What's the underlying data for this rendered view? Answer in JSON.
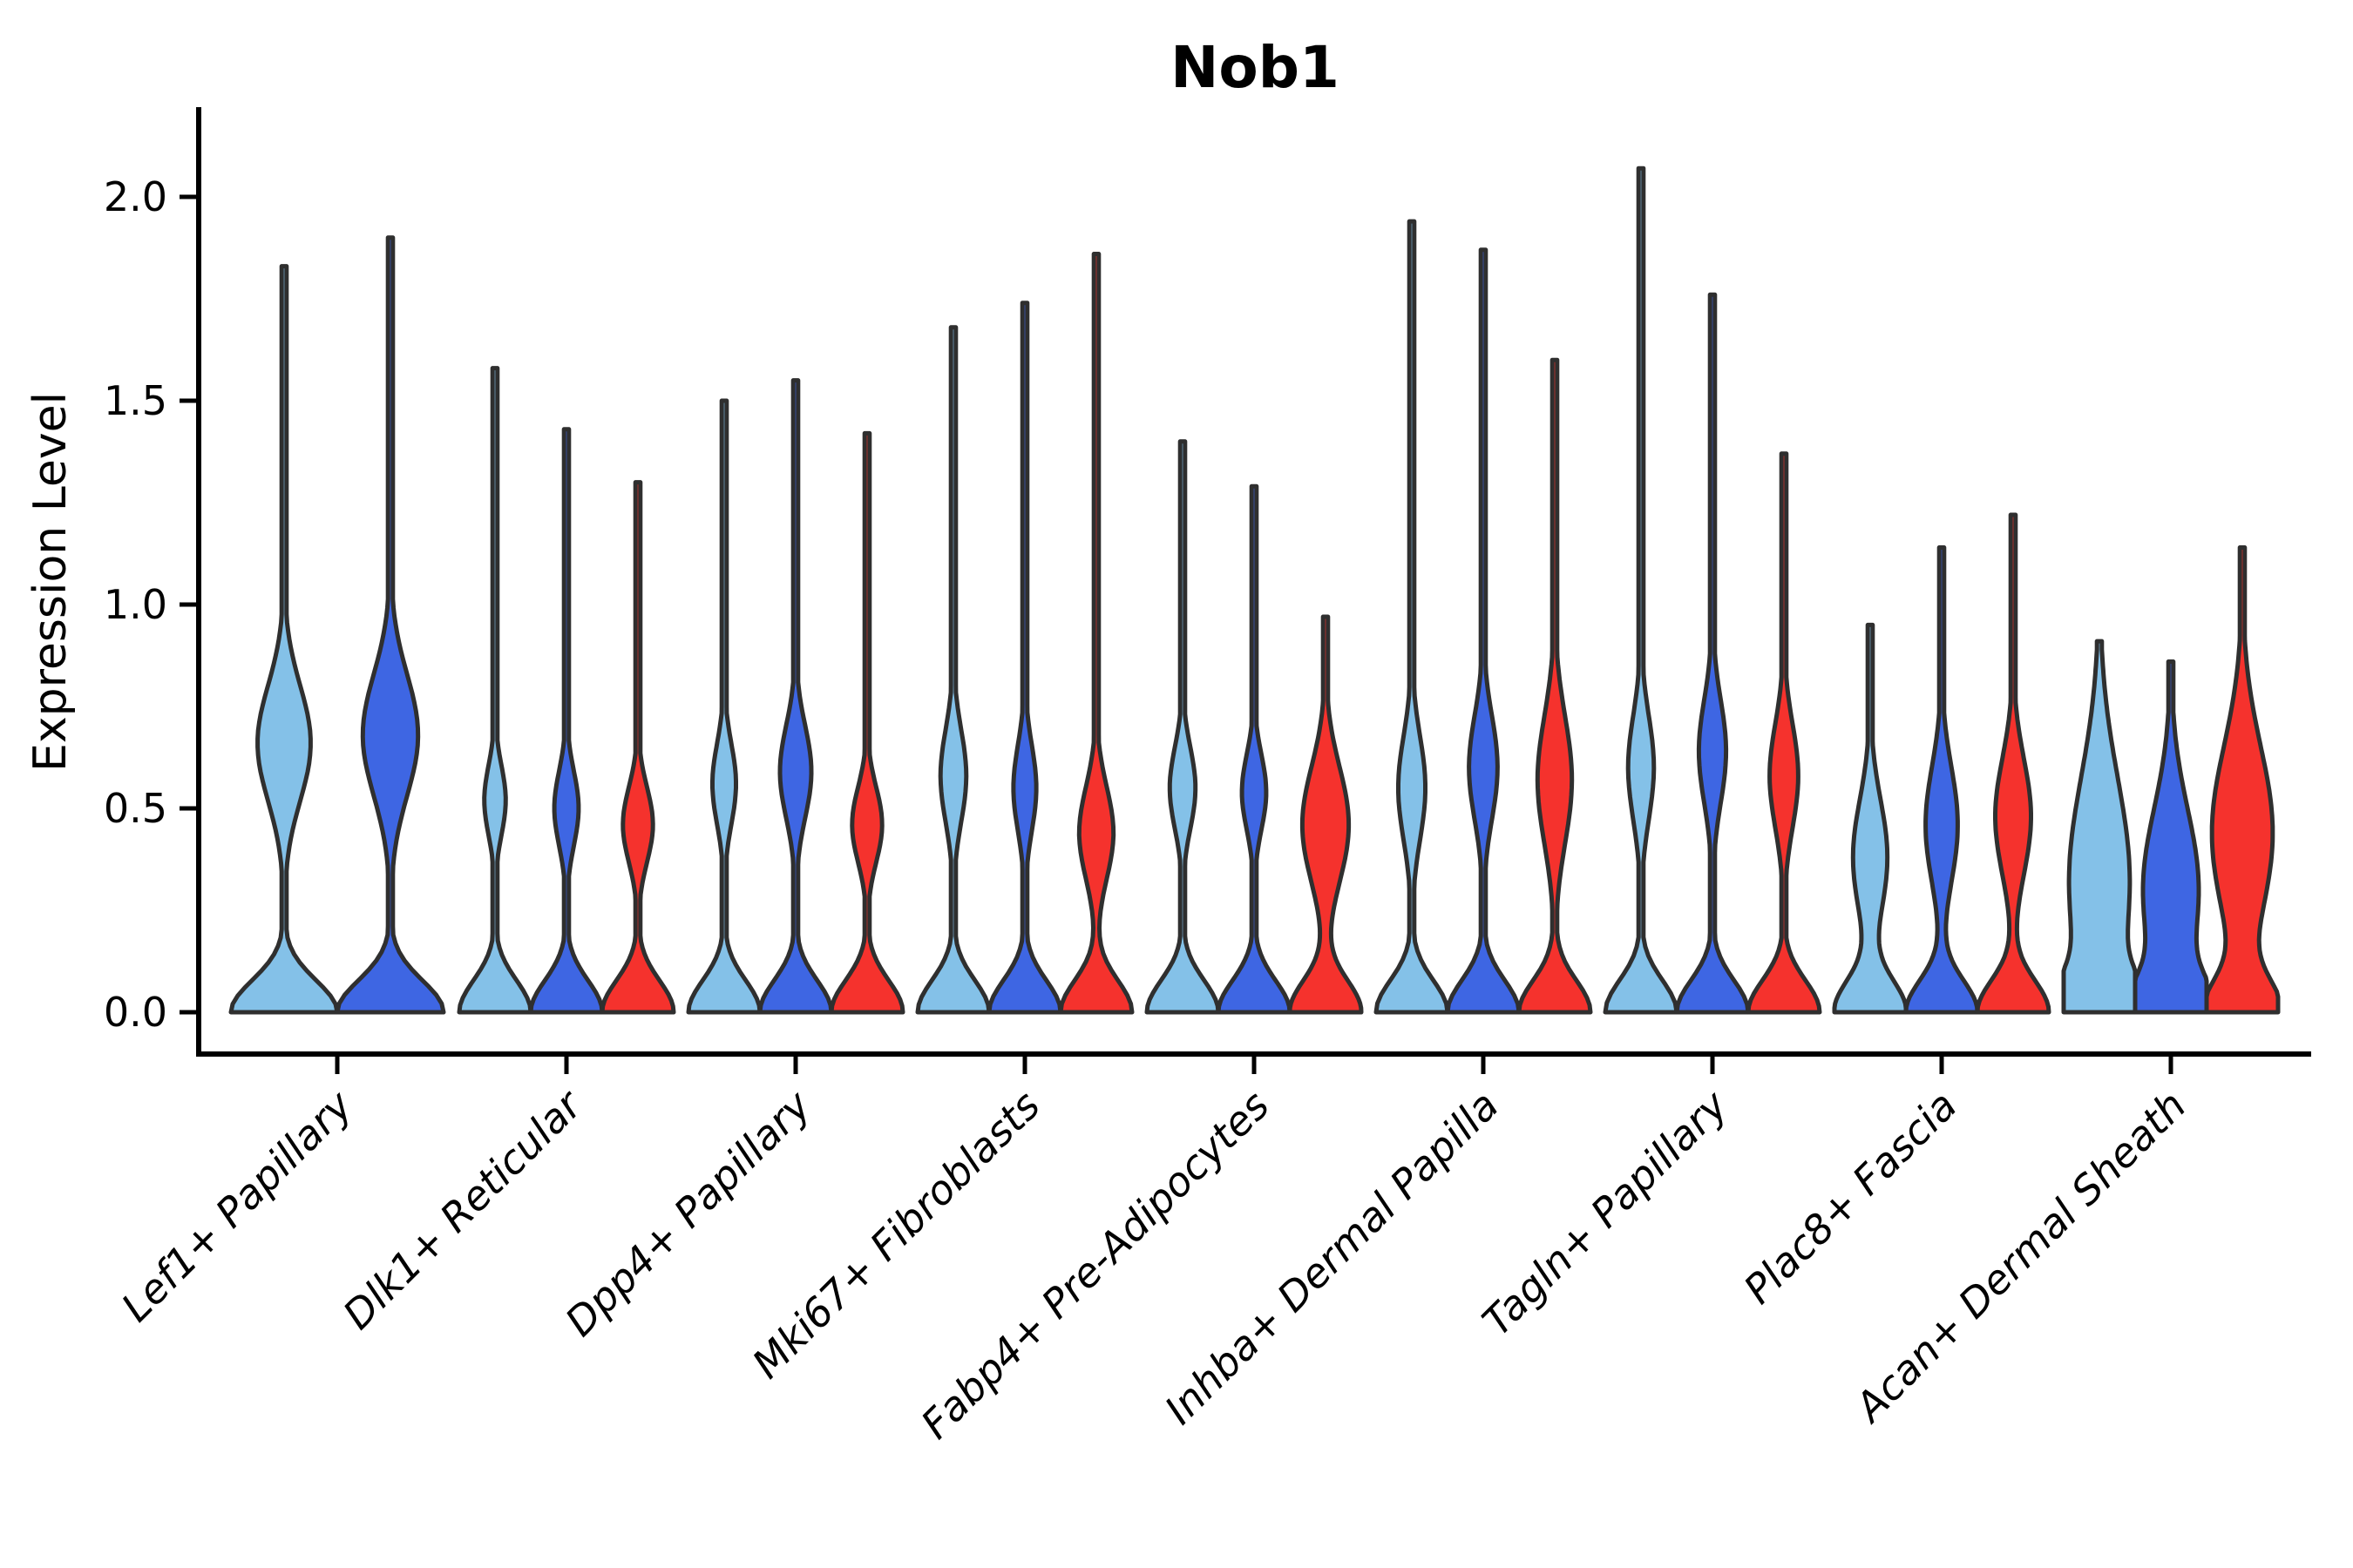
{
  "title": "Nob1",
  "y_axis": {
    "label": "Expression Level",
    "tick_labels": [
      "0.0",
      "0.5",
      "1.0",
      "1.5",
      "2.0"
    ],
    "tick_values": [
      0,
      0.5,
      1.0,
      1.5,
      2.0
    ]
  },
  "colors": {
    "light_blue": "#84C1E8",
    "dark_blue": "#3E66E3",
    "red": "#F5322D",
    "outline": "#2F2F2F",
    "axis": "#000000"
  },
  "chart_data": {
    "type": "violin",
    "title": "Nob1",
    "xlabel": "",
    "ylabel": "Expression Level",
    "ylim": [
      -0.1,
      2.22
    ],
    "grid": false,
    "legend": "none",
    "series_colors_order": [
      "light_blue",
      "dark_blue",
      "red"
    ],
    "categories": [
      "Lef1+ Papillary",
      "Dlk1+ Reticular",
      "Dpp4+ Papillary",
      "Mki67+ Fibroblasts",
      "Fabp4+ Pre-Adipocytes",
      "Inhba+ Dermal Papilla",
      "Tagln+ Papillary",
      "Plac8+ Fascia",
      "Acan+ Dermal Sheath"
    ],
    "groups": [
      {
        "label": "Lef1+ Papillary",
        "violins": [
          {
            "series": "light_blue",
            "max_expression": 1.83,
            "density_peak": 0.66,
            "density_spread": 0.2,
            "bulge_width_frac": 0.5
          },
          {
            "series": "dark_blue",
            "max_expression": 1.9,
            "density_peak": 0.68,
            "density_spread": 0.21,
            "bulge_width_frac": 0.52
          }
        ]
      },
      {
        "label": "Dlk1+ Reticular",
        "violins": [
          {
            "series": "light_blue",
            "max_expression": 1.58,
            "density_peak": 0.52,
            "density_spread": 0.12,
            "bulge_width_frac": 0.3
          },
          {
            "series": "dark_blue",
            "max_expression": 1.43,
            "density_peak": 0.5,
            "density_spread": 0.13,
            "bulge_width_frac": 0.34
          },
          {
            "series": "red",
            "max_expression": 1.3,
            "density_peak": 0.46,
            "density_spread": 0.13,
            "bulge_width_frac": 0.42
          }
        ]
      },
      {
        "label": "Dpp4+ Papillary",
        "violins": [
          {
            "series": "light_blue",
            "max_expression": 1.5,
            "density_peak": 0.56,
            "density_spread": 0.14,
            "bulge_width_frac": 0.33
          },
          {
            "series": "dark_blue",
            "max_expression": 1.55,
            "density_peak": 0.59,
            "density_spread": 0.16,
            "bulge_width_frac": 0.44
          },
          {
            "series": "red",
            "max_expression": 1.42,
            "density_peak": 0.46,
            "density_spread": 0.13,
            "bulge_width_frac": 0.42
          }
        ]
      },
      {
        "label": "Mki67+ Fibroblasts",
        "violins": [
          {
            "series": "light_blue",
            "max_expression": 1.68,
            "density_peak": 0.58,
            "density_spread": 0.16,
            "bulge_width_frac": 0.36
          },
          {
            "series": "dark_blue",
            "max_expression": 1.74,
            "density_peak": 0.55,
            "density_spread": 0.15,
            "bulge_width_frac": 0.32
          },
          {
            "series": "red",
            "max_expression": 1.86,
            "density_peak": 0.44,
            "density_spread": 0.16,
            "bulge_width_frac": 0.48
          }
        ]
      },
      {
        "label": "Fabp4+ Pre-Adipocytes",
        "violins": [
          {
            "series": "light_blue",
            "max_expression": 1.4,
            "density_peak": 0.55,
            "density_spread": 0.14,
            "bulge_width_frac": 0.36
          },
          {
            "series": "dark_blue",
            "max_expression": 1.29,
            "density_peak": 0.54,
            "density_spread": 0.13,
            "bulge_width_frac": 0.34
          },
          {
            "series": "red",
            "max_expression": 0.97,
            "density_peak": 0.46,
            "density_spread": 0.2,
            "bulge_width_frac": 0.65
          }
        ]
      },
      {
        "label": "Inhba+ Dermal Papilla",
        "violins": [
          {
            "series": "light_blue",
            "max_expression": 1.94,
            "density_peak": 0.55,
            "density_spread": 0.18,
            "bulge_width_frac": 0.38
          },
          {
            "series": "dark_blue",
            "max_expression": 1.87,
            "density_peak": 0.6,
            "density_spread": 0.18,
            "bulge_width_frac": 0.4
          },
          {
            "series": "red",
            "max_expression": 1.6,
            "density_peak": 0.57,
            "density_spread": 0.22,
            "bulge_width_frac": 0.48
          }
        ]
      },
      {
        "label": "Tagln+ Papillary",
        "violins": [
          {
            "series": "light_blue",
            "max_expression": 2.07,
            "density_peak": 0.6,
            "density_spread": 0.18,
            "bulge_width_frac": 0.36
          },
          {
            "series": "dark_blue",
            "max_expression": 1.76,
            "density_peak": 0.64,
            "density_spread": 0.18,
            "bulge_width_frac": 0.38
          },
          {
            "series": "red",
            "max_expression": 1.37,
            "density_peak": 0.58,
            "density_spread": 0.18,
            "bulge_width_frac": 0.4
          }
        ]
      },
      {
        "label": "Plac8+ Fascia",
        "violins": [
          {
            "series": "light_blue",
            "max_expression": 0.95,
            "density_peak": 0.38,
            "density_spread": 0.2,
            "bulge_width_frac": 0.48
          },
          {
            "series": "dark_blue",
            "max_expression": 1.14,
            "density_peak": 0.46,
            "density_spread": 0.2,
            "bulge_width_frac": 0.45
          },
          {
            "series": "red",
            "max_expression": 1.22,
            "density_peak": 0.48,
            "density_spread": 0.2,
            "bulge_width_frac": 0.5
          }
        ]
      },
      {
        "label": "Acan+ Dermal Sheath",
        "violins": [
          {
            "series": "light_blue",
            "max_expression": 0.91,
            "density_peak": 0.32,
            "density_spread": 0.36,
            "bulge_width_frac": 0.85
          },
          {
            "series": "dark_blue",
            "max_expression": 0.86,
            "density_peak": 0.3,
            "density_spread": 0.28,
            "bulge_width_frac": 0.78
          },
          {
            "series": "red",
            "max_expression": 1.14,
            "density_peak": 0.44,
            "density_spread": 0.3,
            "bulge_width_frac": 0.85
          }
        ]
      }
    ]
  }
}
